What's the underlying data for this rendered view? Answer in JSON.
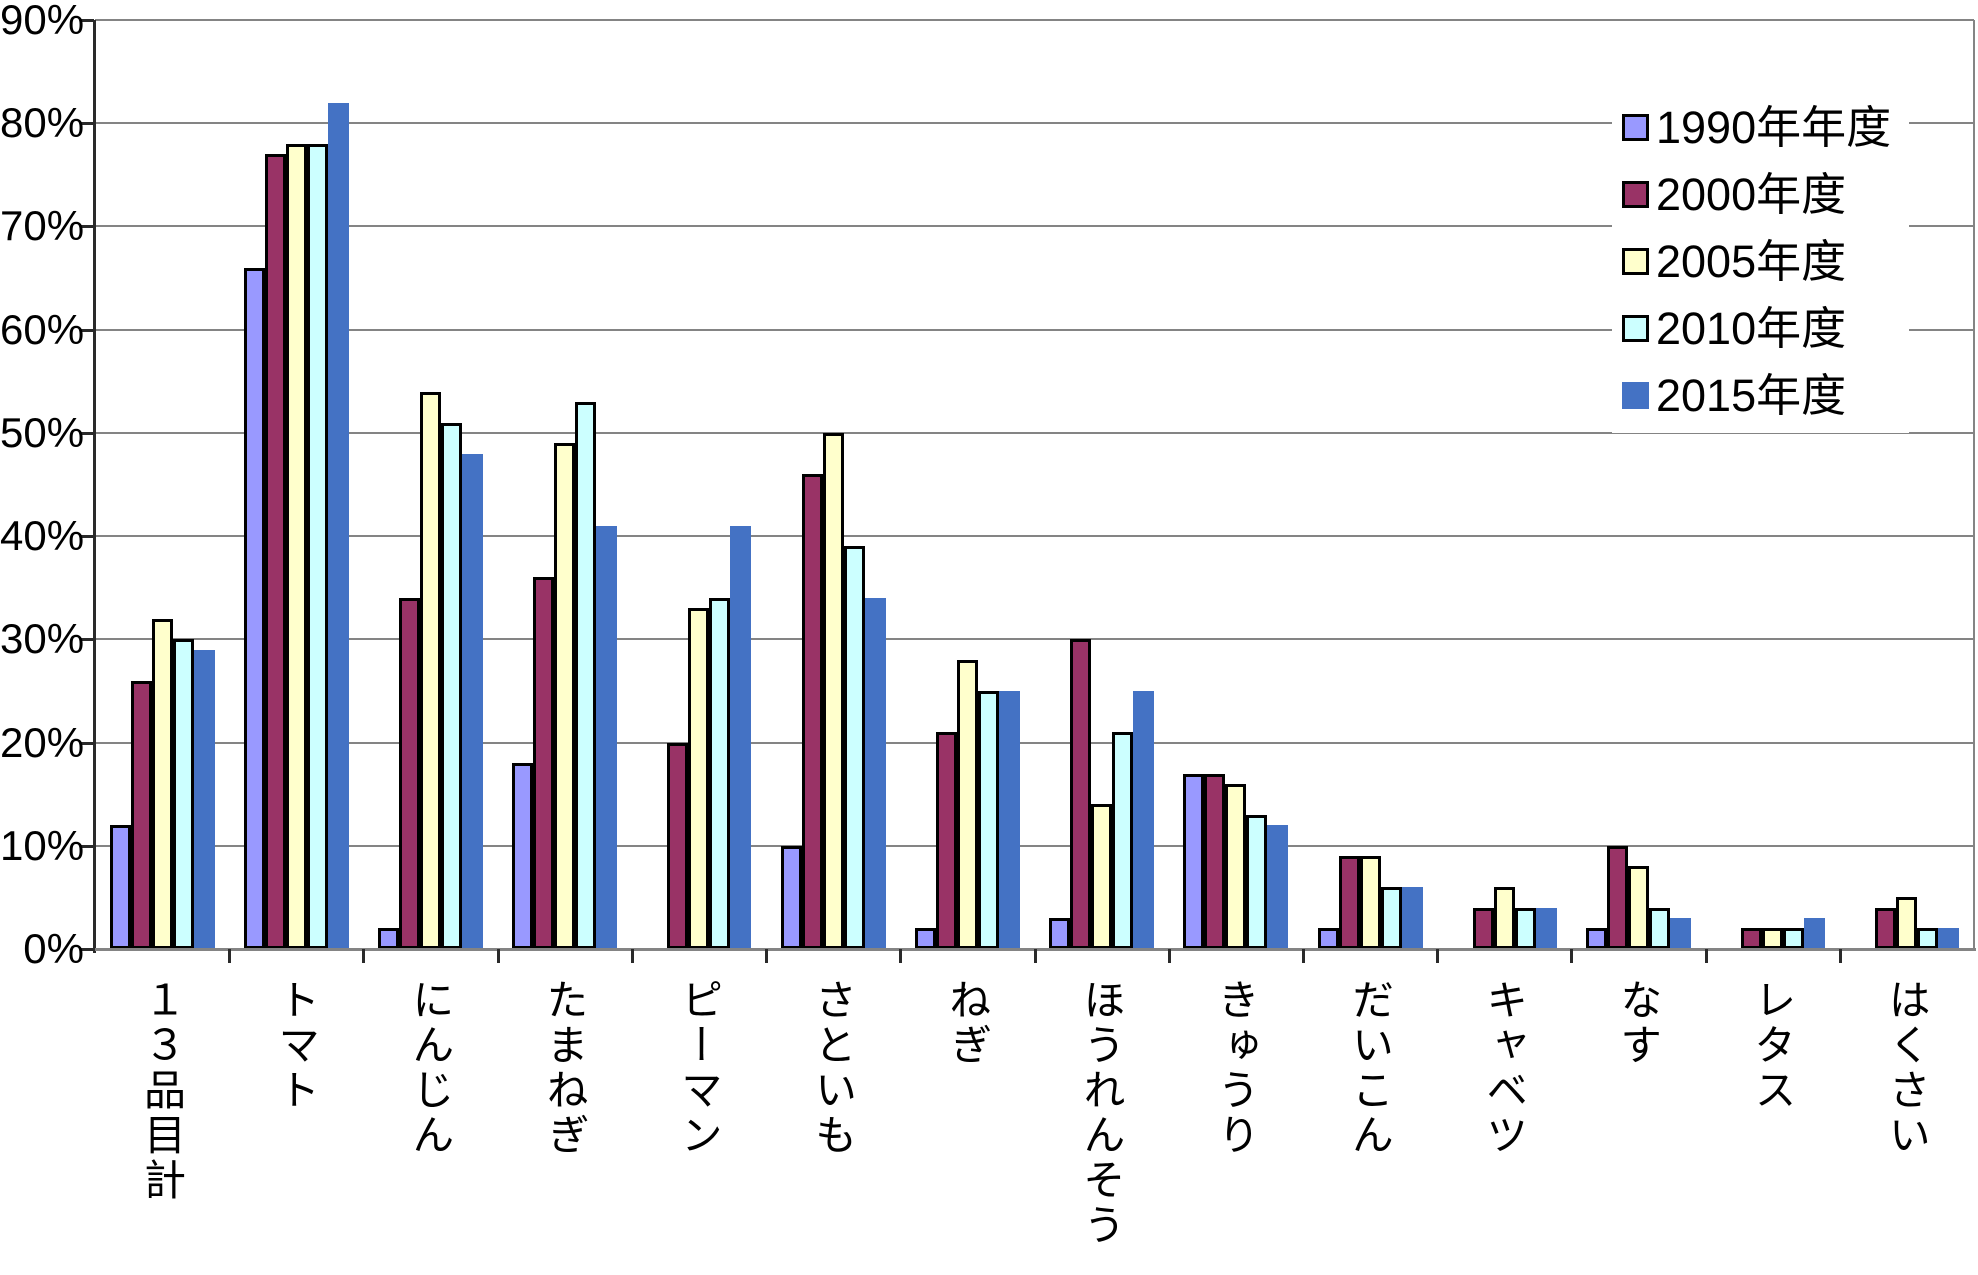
{
  "chart_data": {
    "type": "bar",
    "title": "",
    "categories": [
      "１３品目計",
      "トマト",
      "にんじん",
      "たまねぎ",
      "ピーマン",
      "さといも",
      "ねぎ",
      "ほうれんそう",
      "きゅうり",
      "だいこん",
      "キャベツ",
      "なす",
      "レタス",
      "はくさい"
    ],
    "series": [
      {
        "name": "1990年年度",
        "color": "#9999FF",
        "outlined": true,
        "values": [
          12,
          66,
          2,
          18,
          0,
          10,
          2,
          3,
          17,
          2,
          0,
          2,
          0,
          0
        ]
      },
      {
        "name": "2000年度",
        "color": "#993366",
        "outlined": true,
        "values": [
          26,
          77,
          34,
          36,
          20,
          46,
          21,
          30,
          17,
          9,
          4,
          10,
          2,
          4
        ]
      },
      {
        "name": "2005年度",
        "color": "#FFFFCC",
        "outlined": true,
        "values": [
          32,
          78,
          54,
          49,
          33,
          50,
          28,
          14,
          16,
          9,
          6,
          8,
          2,
          5
        ]
      },
      {
        "name": "2010年度",
        "color": "#CCFFFF",
        "outlined": true,
        "values": [
          30,
          78,
          51,
          53,
          34,
          39,
          25,
          21,
          13,
          6,
          4,
          4,
          2,
          2
        ]
      },
      {
        "name": "2015年度",
        "color": "#4472C4",
        "outlined": false,
        "values": [
          29,
          82,
          48,
          41,
          41,
          34,
          25,
          25,
          12,
          6,
          4,
          3,
          3,
          2
        ]
      }
    ],
    "yticks": [
      "0%",
      "10%",
      "20%",
      "30%",
      "40%",
      "50%",
      "60%",
      "70%",
      "80%",
      "90%"
    ],
    "ylim": [
      0,
      90
    ],
    "grid": true,
    "legend_position": "upper-right",
    "colors": {
      "gridline": "#848484",
      "axis": "#2a2a2a",
      "background": "#FFFFFF"
    }
  }
}
